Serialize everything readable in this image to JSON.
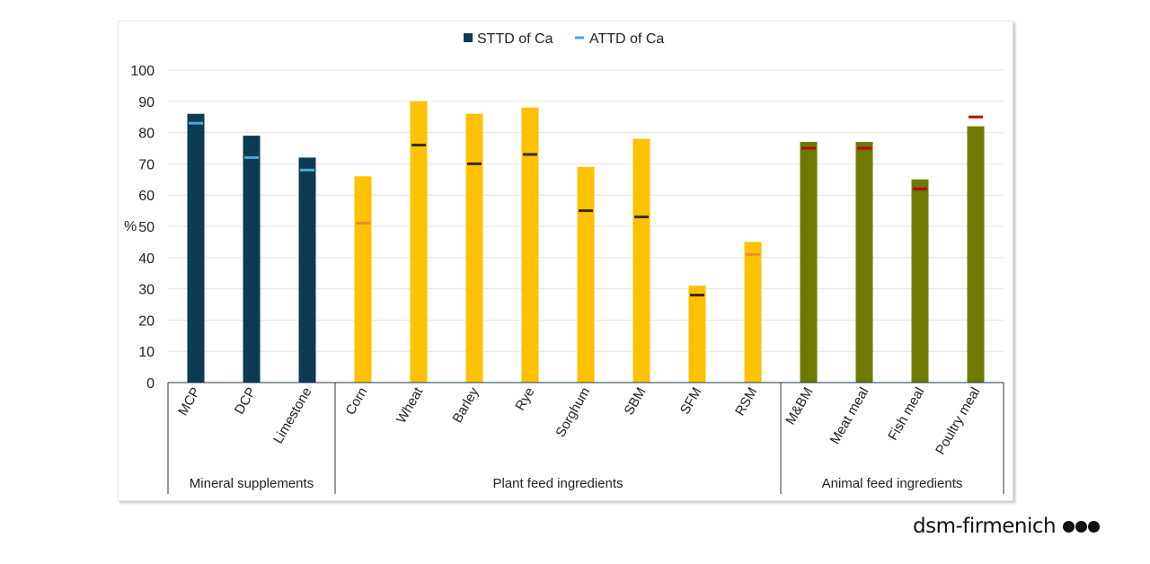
{
  "chart_data": {
    "type": "bar",
    "ylabel": "%",
    "ylim": [
      0,
      100
    ],
    "yticks": [
      0,
      10,
      20,
      30,
      40,
      50,
      60,
      70,
      80,
      90,
      100
    ],
    "legend_position": "top",
    "legend": [
      {
        "name": "STTD of Ca",
        "marker": "square",
        "color": "#0d3b52"
      },
      {
        "name": "ATTD of Ca",
        "marker": "dash",
        "color": "#4aa7d8"
      }
    ],
    "groups": [
      {
        "name": "Mineral supplements",
        "bar_color": "#0d3b52",
        "marker_color": "#4aa7d8",
        "categories": [
          "MCP",
          "DCP",
          "Limestone"
        ]
      },
      {
        "name": "Plant feed ingredients",
        "bar_color": "#fcc200",
        "marker_color": "#2b2b2b",
        "categories": [
          "Corn",
          "Wheat",
          "Barley",
          "Rye",
          "Sorghum",
          "SBM",
          "SFM",
          "RSM"
        ]
      },
      {
        "name": "Animal feed ingredients",
        "bar_color": "#6e7a00",
        "marker_color": "#c00000",
        "categories": [
          "M&BM",
          "Meat meal",
          "Fish meal",
          "Poultry meal"
        ]
      }
    ],
    "categories": [
      "MCP",
      "DCP",
      "Limestone",
      "Corn",
      "Wheat",
      "Barley",
      "Rye",
      "Sorghum",
      "SBM",
      "SFM",
      "RSM",
      "M&BM",
      "Meat meal",
      "Fish meal",
      "Poultry meal"
    ],
    "series": [
      {
        "name": "STTD of Ca",
        "values": [
          86,
          79,
          72,
          66,
          90,
          86,
          88,
          69,
          78,
          31,
          45,
          77,
          77,
          65,
          82
        ]
      },
      {
        "name": "ATTD of Ca",
        "values": [
          83,
          72,
          68,
          51,
          76,
          70,
          73,
          55,
          53,
          28,
          41,
          75,
          75,
          62,
          85
        ]
      }
    ],
    "attd_marker_colors": [
      "#4aa7d8",
      "#4aa7d8",
      "#4aa7d8",
      "#f08a30",
      "#3a2a2a",
      "#3a2a2a",
      "#3a2a2a",
      "#3a2a2a",
      "#3a2a2a",
      "#3a2a2a",
      "#f08a30",
      "#c00000",
      "#c00000",
      "#c00000",
      "#c00000"
    ]
  },
  "logo": {
    "text": "dsm-firmenich"
  }
}
